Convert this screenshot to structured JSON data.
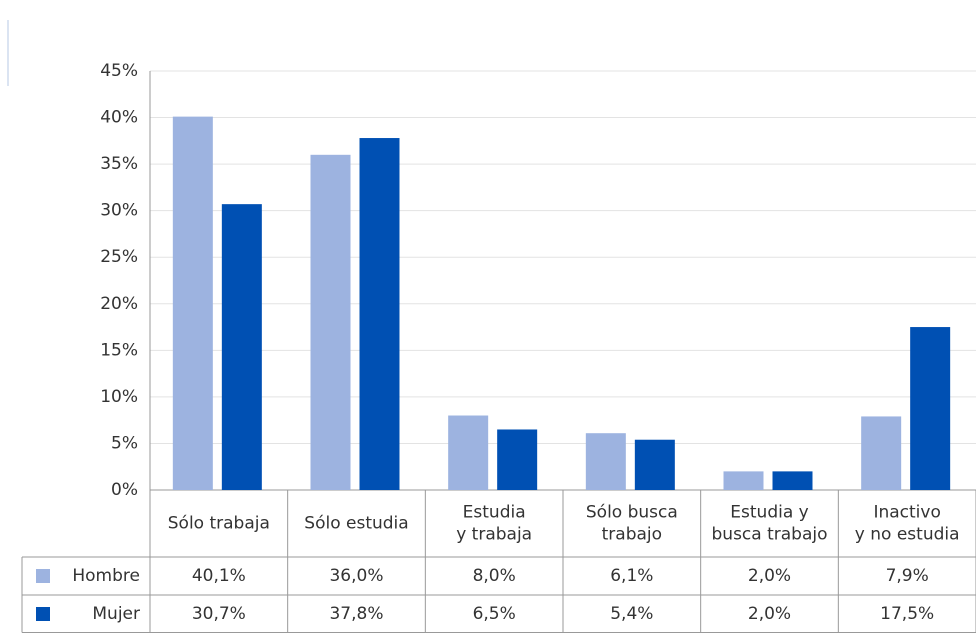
{
  "chart_data": {
    "type": "bar",
    "categories": [
      "Sólo trabaja",
      "Sólo estudia",
      "Estudia\ny trabaja",
      "Sólo busca\ntrabajo",
      "Estudia y\nbusca trabajo",
      "Inactivo\ny no estudia"
    ],
    "series": [
      {
        "name": "Hombre",
        "color": "#9db3e0",
        "values": [
          40.1,
          36.0,
          8.0,
          6.1,
          2.0,
          7.9
        ],
        "value_labels": [
          "40,1%",
          "36,0%",
          "8,0%",
          "6,1%",
          "2,0%",
          "7,9%"
        ]
      },
      {
        "name": "Mujer",
        "color": "#0050b3",
        "values": [
          30.7,
          37.8,
          6.5,
          5.4,
          2.0,
          17.5
        ],
        "value_labels": [
          "30,7%",
          "37,8%",
          "6,5%",
          "5,4%",
          "2,0%",
          "17,5%"
        ]
      }
    ],
    "ylim": [
      0,
      45
    ],
    "yticks": [
      {
        "value": 0,
        "label": "0%"
      },
      {
        "value": 5,
        "label": "5%"
      },
      {
        "value": 10,
        "label": "10%"
      },
      {
        "value": 15,
        "label": "15%"
      },
      {
        "value": 20,
        "label": "20%"
      },
      {
        "value": 25,
        "label": "25%"
      },
      {
        "value": 30,
        "label": "30%"
      },
      {
        "value": 35,
        "label": "35%"
      },
      {
        "value": 40,
        "label": "40%"
      },
      {
        "value": 45,
        "label": "45%"
      }
    ],
    "grid": true
  }
}
